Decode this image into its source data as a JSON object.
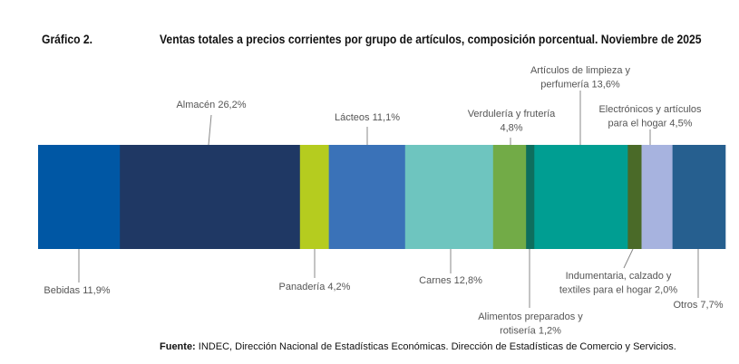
{
  "figure_number": "Gráfico 2.",
  "chart_data": {
    "type": "bar",
    "orientation": "horizontal-stacked-100",
    "title": "Ventas totales a precios corrientes por grupo de artículos, composición porcentual. Noviembre de 2025",
    "unit": "%",
    "categories": [
      "Bebidas",
      "Almacén",
      "Panadería",
      "Lácteos",
      "Carnes",
      "Verdulería y frutería",
      "Alimentos preparados y rotisería",
      "Artículos de limpieza y perfumería",
      "Indumentaria, calzado y textiles para el hogar",
      "Electrónicos y artículos para el hogar",
      "Otros"
    ],
    "values": [
      11.9,
      26.2,
      4.2,
      11.1,
      12.8,
      4.8,
      1.2,
      13.6,
      2.0,
      4.5,
      7.7
    ],
    "labels": [
      [
        "Bebidas 11,9%"
      ],
      [
        "Almacén 26,2%"
      ],
      [
        "Panadería 4,2%"
      ],
      [
        "Lácteos 11,1%"
      ],
      [
        "Carnes 12,8%"
      ],
      [
        "Verdulería y frutería",
        "4,8%"
      ],
      [
        "Alimentos preparados y",
        "rotisería 1,2%"
      ],
      [
        "Artículos de limpieza y",
        "perfumería 13,6%"
      ],
      [
        "Indumentaria, calzado y",
        "textiles para el hogar 2,0%"
      ],
      [
        "Electrónicos y artículos",
        "para el hogar 4,5%"
      ],
      [
        "Otros 7,7%"
      ]
    ],
    "colors": [
      "#0057a4",
      "#1f3864",
      "#b5cc1f",
      "#3a72b8",
      "#6ec5bf",
      "#72ab47",
      "#0e6e5e",
      "#009e92",
      "#4a6a28",
      "#a7b3df",
      "#265f8f"
    ],
    "source_label": "Fuente:",
    "source": " INDEC, Dirección Nacional de Estadísticas Económicas. Dirección de Estadísticas de Comercio y Servicios."
  }
}
